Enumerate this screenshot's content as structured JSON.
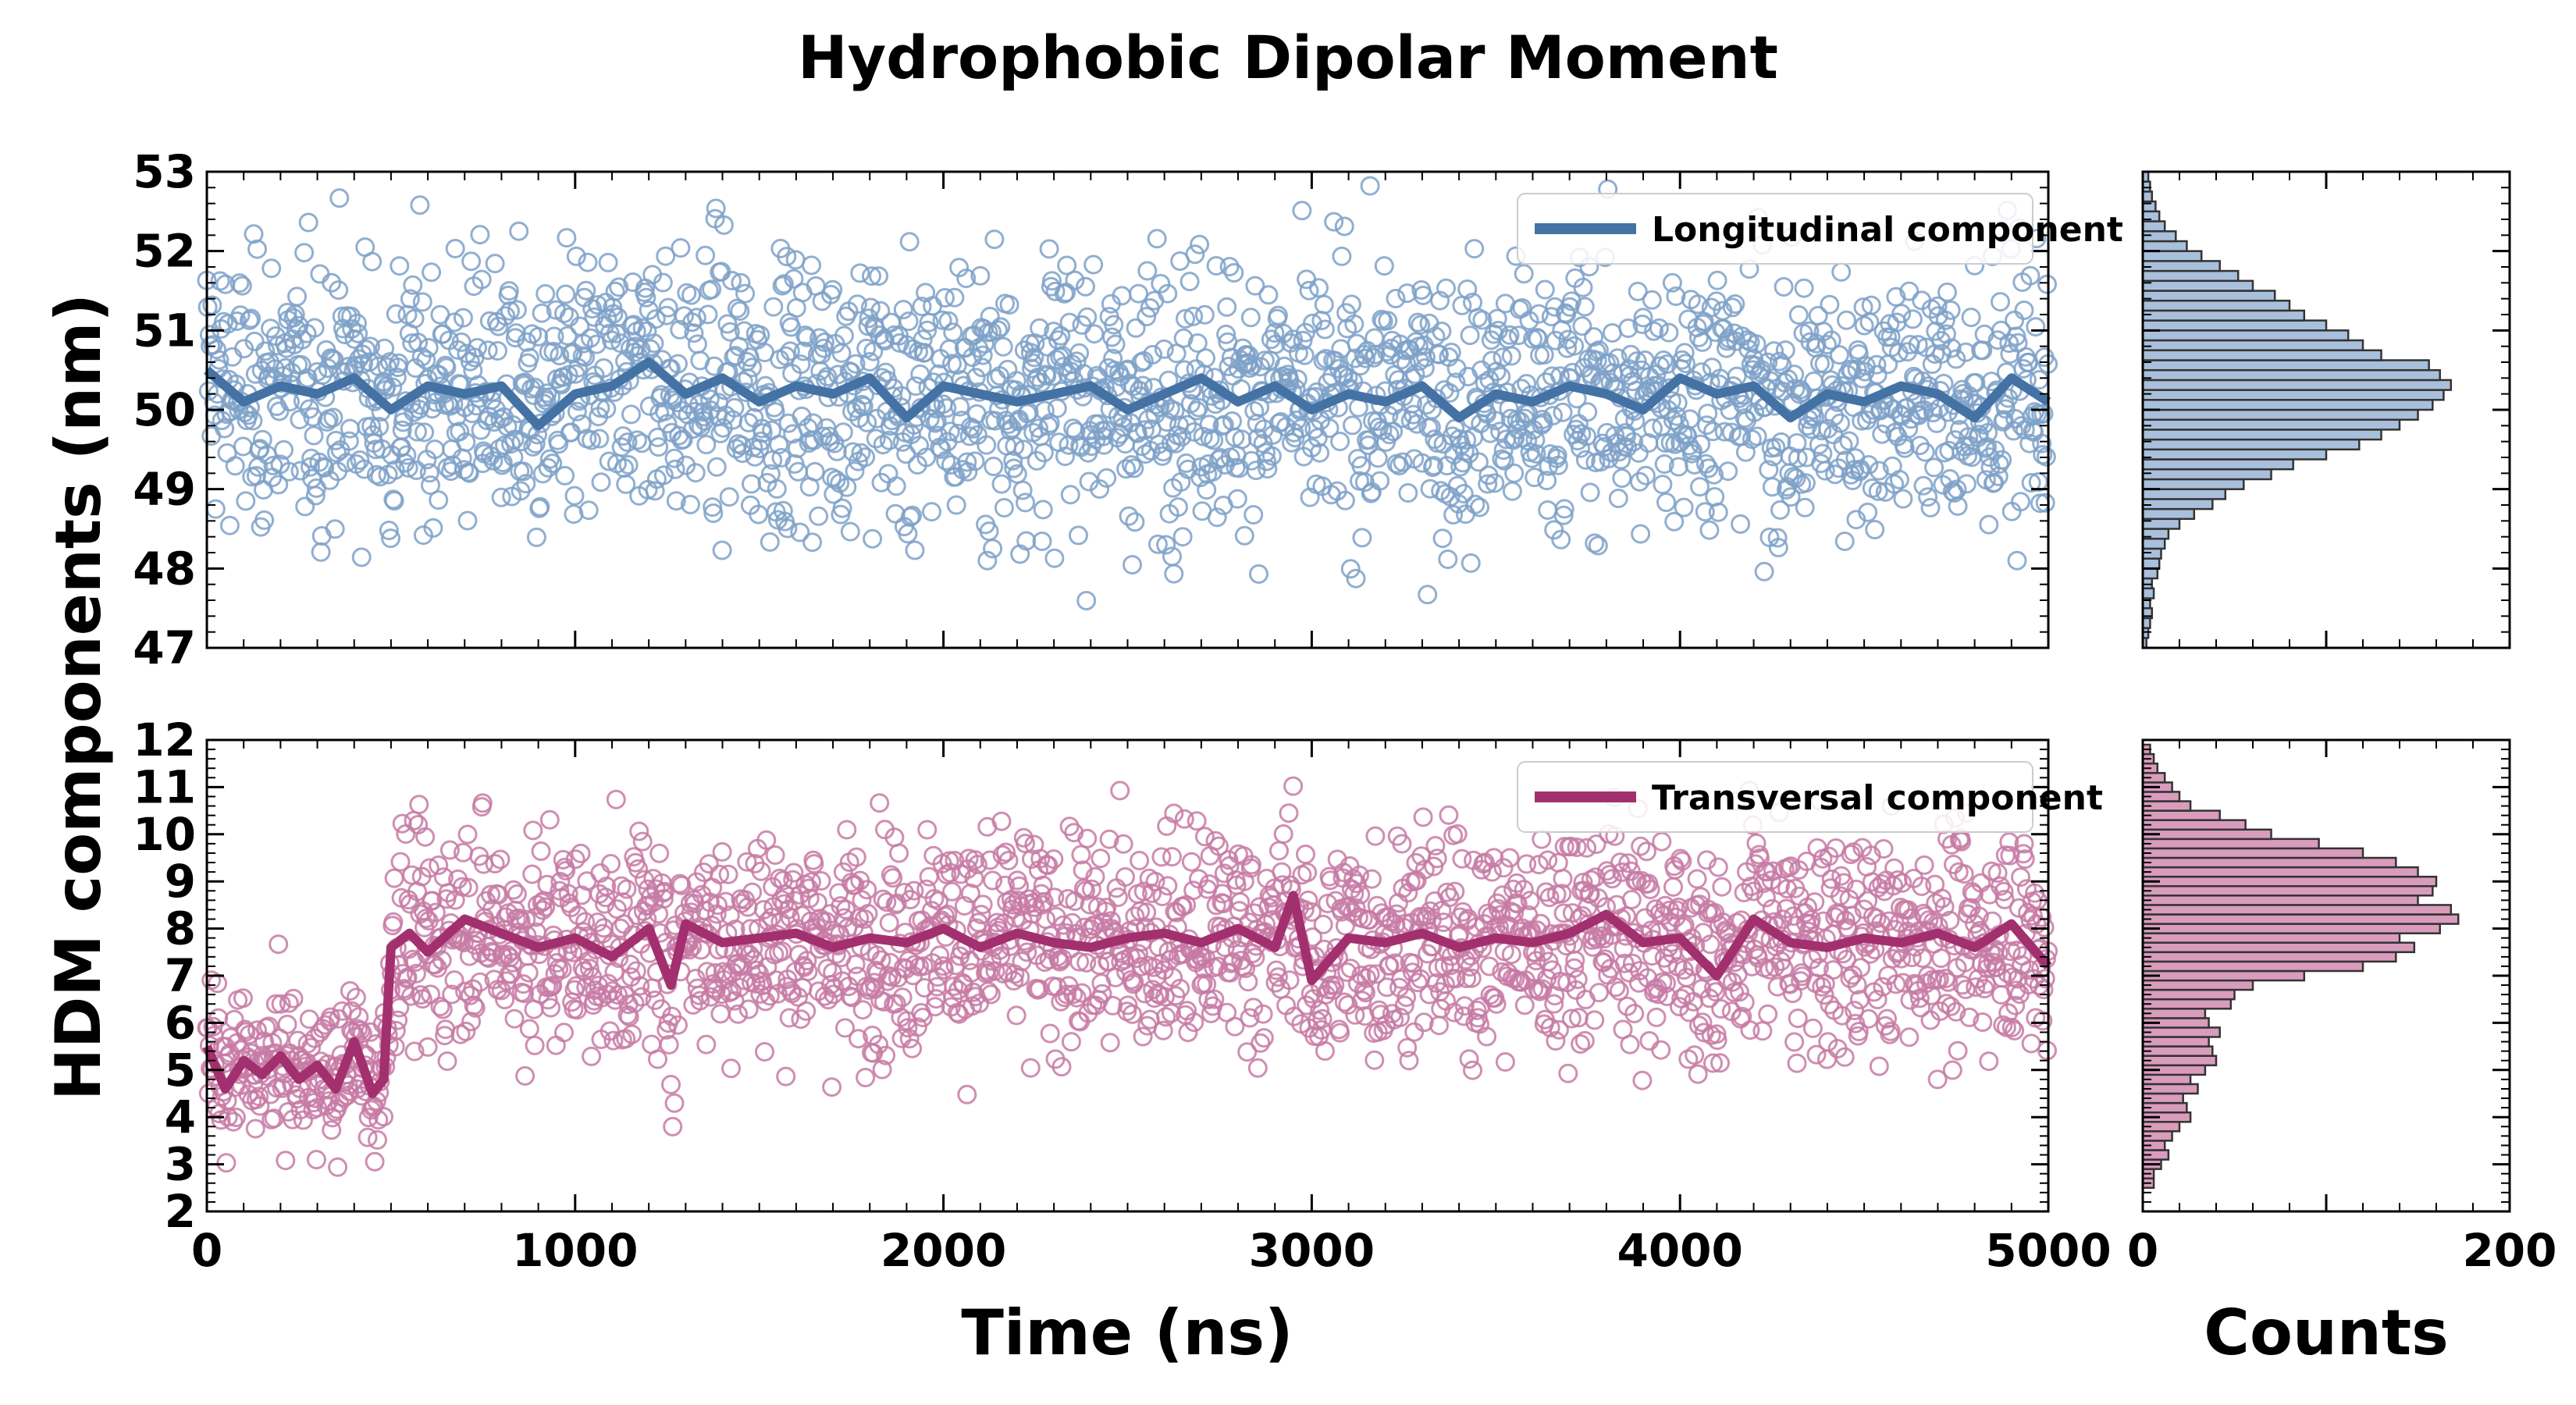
{
  "figure": {
    "title": "Hydrophobic Dipolar Moment",
    "ylabel": "HDM components (nm)",
    "xlabel_time": "Time (ns)",
    "xlabel_counts": "Counts"
  },
  "chart_data": [
    {
      "id": "longitudinal",
      "type": "scatter",
      "series": [
        {
          "name": "Longitudinal component",
          "style": "line",
          "color": "#4472a4",
          "note_running_mean": true,
          "x": [
            0,
            100,
            200,
            300,
            400,
            500,
            600,
            700,
            800,
            900,
            1000,
            1100,
            1200,
            1300,
            1400,
            1500,
            1600,
            1700,
            1800,
            1900,
            2000,
            2100,
            2200,
            2300,
            2400,
            2500,
            2600,
            2700,
            2800,
            2900,
            3000,
            3100,
            3200,
            3300,
            3400,
            3500,
            3600,
            3700,
            3800,
            3900,
            4000,
            4100,
            4200,
            4300,
            4400,
            4500,
            4600,
            4700,
            4800,
            4900,
            5000
          ],
          "y": [
            50.5,
            50.1,
            50.3,
            50.2,
            50.4,
            50.0,
            50.3,
            50.2,
            50.3,
            49.8,
            50.2,
            50.3,
            50.6,
            50.2,
            50.4,
            50.1,
            50.3,
            50.2,
            50.4,
            49.9,
            50.3,
            50.2,
            50.1,
            50.2,
            50.3,
            50.0,
            50.2,
            50.4,
            50.1,
            50.3,
            50.0,
            50.2,
            50.1,
            50.3,
            49.9,
            50.2,
            50.1,
            50.3,
            50.2,
            50.0,
            50.4,
            50.2,
            50.3,
            49.9,
            50.2,
            50.1,
            50.3,
            50.2,
            49.9,
            50.4,
            50.1
          ]
        },
        {
          "name": "",
          "style": "markers",
          "color": "#7ea1c8",
          "marker": "open-circle"
        }
      ],
      "xlim": [
        0,
        5000
      ],
      "ylim": [
        47,
        53
      ],
      "yticks": [
        "47",
        "48",
        "49",
        "50",
        "51",
        "52",
        "53"
      ],
      "xticks": [
        "0",
        "1000",
        "2000",
        "3000",
        "4000",
        "5000"
      ],
      "show_x_tick_labels": false,
      "legend": "top-right"
    },
    {
      "id": "transversal",
      "type": "scatter",
      "series": [
        {
          "name": "Transversal component",
          "style": "line",
          "color": "#a3306e",
          "x": [
            0,
            50,
            100,
            150,
            200,
            250,
            300,
            350,
            400,
            450,
            480,
            500,
            550,
            600,
            700,
            800,
            900,
            1000,
            1100,
            1200,
            1260,
            1300,
            1400,
            1500,
            1600,
            1700,
            1800,
            1900,
            2000,
            2100,
            2200,
            2300,
            2400,
            2500,
            2600,
            2700,
            2800,
            2900,
            2950,
            3000,
            3100,
            3200,
            3300,
            3400,
            3500,
            3600,
            3700,
            3800,
            3900,
            4000,
            4100,
            4200,
            4300,
            4400,
            4500,
            4600,
            4700,
            4800,
            4900,
            5000
          ],
          "y": [
            5.5,
            4.6,
            5.2,
            4.9,
            5.3,
            4.8,
            5.1,
            4.6,
            5.6,
            4.5,
            4.8,
            7.6,
            7.9,
            7.5,
            8.2,
            7.9,
            7.6,
            7.8,
            7.4,
            8.0,
            6.8,
            8.1,
            7.7,
            7.8,
            7.9,
            7.6,
            7.8,
            7.7,
            8.0,
            7.6,
            7.9,
            7.7,
            7.6,
            7.8,
            7.9,
            7.7,
            8.0,
            7.6,
            8.7,
            6.9,
            7.8,
            7.7,
            7.9,
            7.6,
            7.8,
            7.7,
            7.9,
            8.3,
            7.7,
            7.8,
            7.0,
            8.2,
            7.7,
            7.6,
            7.8,
            7.7,
            7.9,
            7.6,
            8.1,
            7.2
          ]
        },
        {
          "name": "",
          "style": "markers",
          "color": "#c77aa5",
          "marker": "open-circle"
        }
      ],
      "xlim": [
        0,
        5000
      ],
      "ylim": [
        2,
        12
      ],
      "yticks": [
        "2",
        "3",
        "4",
        "5",
        "6",
        "7",
        "8",
        "9",
        "10",
        "11",
        "12"
      ],
      "xticks": [
        "0",
        "1000",
        "2000",
        "3000",
        "4000",
        "5000"
      ],
      "show_x_tick_labels": true,
      "legend": "top-right"
    },
    {
      "id": "hist-longitudinal",
      "type": "bar",
      "orientation": "horizontal",
      "color": "#a9c0dc",
      "edge": "#333333",
      "bin_edges_start": 47.0,
      "bin_width": 0.125,
      "counts": [
        2,
        3,
        4,
        5,
        4,
        6,
        5,
        8,
        9,
        10,
        12,
        14,
        20,
        28,
        38,
        45,
        55,
        70,
        82,
        100,
        118,
        130,
        140,
        150,
        158,
        164,
        168,
        162,
        156,
        130,
        120,
        112,
        100,
        88,
        80,
        72,
        60,
        52,
        42,
        32,
        24,
        18,
        12,
        9,
        7,
        5,
        4,
        3
      ],
      "xlim": [
        0,
        200
      ],
      "xticks": [
        "0",
        "200"
      ]
    },
    {
      "id": "hist-transversal",
      "type": "bar",
      "orientation": "horizontal",
      "color": "#d99cbd",
      "edge": "#333333",
      "bin_edges_start": 2.5,
      "bin_width": 0.2,
      "counts": [
        6,
        6,
        10,
        14,
        12,
        16,
        20,
        26,
        24,
        22,
        30,
        26,
        34,
        40,
        38,
        36,
        42,
        36,
        34,
        48,
        50,
        60,
        88,
        120,
        138,
        148,
        140,
        162,
        172,
        168,
        150,
        158,
        160,
        150,
        138,
        120,
        96,
        70,
        56,
        42,
        26,
        20,
        16,
        12,
        8,
        6,
        4
      ],
      "xlim": [
        0,
        200
      ],
      "xticks": [
        "0",
        "200"
      ]
    }
  ]
}
